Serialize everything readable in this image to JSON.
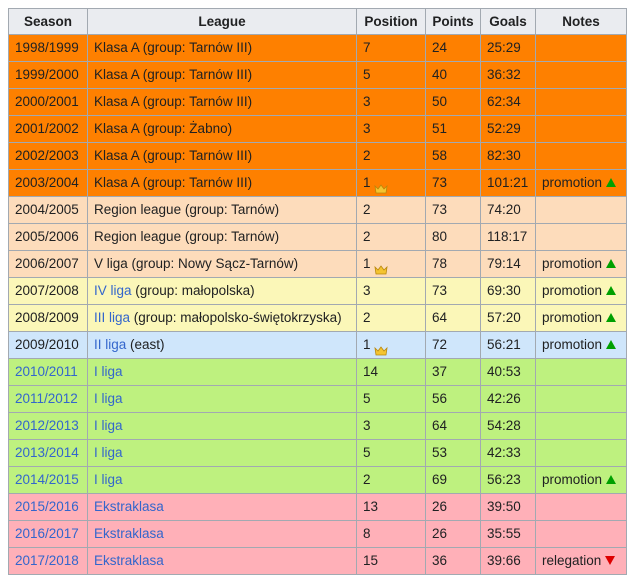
{
  "headers": [
    "Season",
    "League",
    "Position",
    "Points",
    "Goals",
    "Notes"
  ],
  "colors": {
    "klasa_a": "#fe8000",
    "region": "#fddcbb",
    "v_liga": "#fddcbb",
    "iv_liga": "#fbf7b8",
    "iii_liga": "#fbf7b8",
    "ii_liga": "#cfe6fb",
    "i_liga": "#bef17f",
    "ekstraklasa": "#ffb0b8",
    "link": "#3366cc",
    "promotion_arrow": "#00a000",
    "relegation_arrow": "#dd0000"
  },
  "rows": [
    {
      "season": "1998/1999",
      "season_link": false,
      "league_link_text": "",
      "league_text": "Klasa A (group: Tarnów III)",
      "position": "7",
      "crown": false,
      "points": "24",
      "goals": "25:29",
      "note": "",
      "arrow": "",
      "tier": "klasa_a"
    },
    {
      "season": "1999/2000",
      "season_link": false,
      "league_link_text": "",
      "league_text": "Klasa A (group: Tarnów III)",
      "position": "5",
      "crown": false,
      "points": "40",
      "goals": "36:32",
      "note": "",
      "arrow": "",
      "tier": "klasa_a"
    },
    {
      "season": "2000/2001",
      "season_link": false,
      "league_link_text": "",
      "league_text": "Klasa A (group: Tarnów III)",
      "position": "3",
      "crown": false,
      "points": "50",
      "goals": "62:34",
      "note": "",
      "arrow": "",
      "tier": "klasa_a"
    },
    {
      "season": "2001/2002",
      "season_link": false,
      "league_link_text": "",
      "league_text": "Klasa A (group: Żabno)",
      "position": "3",
      "crown": false,
      "points": "51",
      "goals": "52:29",
      "note": "",
      "arrow": "",
      "tier": "klasa_a"
    },
    {
      "season": "2002/2003",
      "season_link": false,
      "league_link_text": "",
      "league_text": "Klasa A (group: Tarnów III)",
      "position": "2",
      "crown": false,
      "points": "58",
      "goals": "82:30",
      "note": "",
      "arrow": "",
      "tier": "klasa_a"
    },
    {
      "season": "2003/2004",
      "season_link": false,
      "league_link_text": "",
      "league_text": "Klasa A (group: Tarnów III)",
      "position": "1",
      "crown": true,
      "points": "73",
      "goals": "101:21",
      "note": "promotion",
      "arrow": "up",
      "tier": "klasa_a"
    },
    {
      "season": "2004/2005",
      "season_link": false,
      "league_link_text": "",
      "league_text": "Region league (group: Tarnów)",
      "position": "2",
      "crown": false,
      "points": "73",
      "goals": "74:20",
      "note": "",
      "arrow": "",
      "tier": "region"
    },
    {
      "season": "2005/2006",
      "season_link": false,
      "league_link_text": "",
      "league_text": "Region league (group: Tarnów)",
      "position": "2",
      "crown": false,
      "points": "80",
      "goals": "118:17",
      "note": "",
      "arrow": "",
      "tier": "region"
    },
    {
      "season": "2006/2007",
      "season_link": false,
      "league_link_text": "",
      "league_text": "V liga (group: Nowy Sącz-Tarnów)",
      "position": "1",
      "crown": true,
      "points": "78",
      "goals": "79:14",
      "note": "promotion",
      "arrow": "up",
      "tier": "v_liga"
    },
    {
      "season": "2007/2008",
      "season_link": false,
      "league_link_text": "IV liga",
      "league_text": " (group: małopolska)",
      "position": "3",
      "crown": false,
      "points": "73",
      "goals": "69:30",
      "note": "promotion",
      "arrow": "up",
      "tier": "iv_liga"
    },
    {
      "season": "2008/2009",
      "season_link": false,
      "league_link_text": "III liga",
      "league_text": " (group: małopolsko-świętokrzyska)",
      "position": "2",
      "crown": false,
      "points": "64",
      "goals": "57:20",
      "note": "promotion",
      "arrow": "up",
      "tier": "iii_liga"
    },
    {
      "season": "2009/2010",
      "season_link": false,
      "league_link_text": "II liga",
      "league_text": " (east)",
      "position": "1",
      "crown": true,
      "points": "72",
      "goals": "56:21",
      "note": "promotion",
      "arrow": "up",
      "tier": "ii_liga"
    },
    {
      "season": "2010/2011",
      "season_link": true,
      "league_link_text": "I liga",
      "league_text": "",
      "position": "14",
      "crown": false,
      "points": "37",
      "goals": "40:53",
      "note": "",
      "arrow": "",
      "tier": "i_liga"
    },
    {
      "season": "2011/2012",
      "season_link": true,
      "league_link_text": "I liga",
      "league_text": "",
      "position": "5",
      "crown": false,
      "points": "56",
      "goals": "42:26",
      "note": "",
      "arrow": "",
      "tier": "i_liga"
    },
    {
      "season": "2012/2013",
      "season_link": true,
      "league_link_text": "I liga",
      "league_text": "",
      "position": "3",
      "crown": false,
      "points": "64",
      "goals": "54:28",
      "note": "",
      "arrow": "",
      "tier": "i_liga"
    },
    {
      "season": "2013/2014",
      "season_link": true,
      "league_link_text": "I liga",
      "league_text": "",
      "position": "5",
      "crown": false,
      "points": "53",
      "goals": "42:33",
      "note": "",
      "arrow": "",
      "tier": "i_liga"
    },
    {
      "season": "2014/2015",
      "season_link": true,
      "league_link_text": "I liga",
      "league_text": "",
      "position": "2",
      "crown": false,
      "points": "69",
      "goals": "56:23",
      "note": "promotion",
      "arrow": "up",
      "tier": "i_liga"
    },
    {
      "season": "2015/2016",
      "season_link": true,
      "league_link_text": "Ekstraklasa",
      "league_text": "",
      "position": "13",
      "crown": false,
      "points": "26",
      "goals": "39:50",
      "note": "",
      "arrow": "",
      "tier": "ekstraklasa"
    },
    {
      "season": "2016/2017",
      "season_link": true,
      "league_link_text": "Ekstraklasa",
      "league_text": "",
      "position": "8",
      "crown": false,
      "points": "26",
      "goals": "35:55",
      "note": "",
      "arrow": "",
      "tier": "ekstraklasa"
    },
    {
      "season": "2017/2018",
      "season_link": true,
      "league_link_text": "Ekstraklasa",
      "league_text": "",
      "position": "15",
      "crown": false,
      "points": "36",
      "goals": "39:66",
      "note": "relegation",
      "arrow": "down",
      "tier": "ekstraklasa"
    }
  ]
}
